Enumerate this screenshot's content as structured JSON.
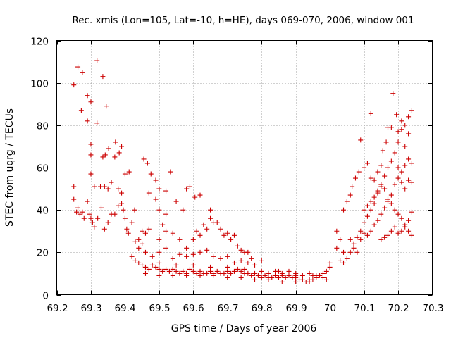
{
  "chart_data": {
    "type": "scatter",
    "title": "Rec. xmis (Lon=105, Lat=-10, h=HE), days 069-070, 2006, window 001",
    "xlabel": "GPS time / Days of year 2006",
    "ylabel": "STEC from uqrg / TECUs",
    "xlim": [
      69.2,
      70.3
    ],
    "ylim": [
      0,
      120
    ],
    "xticks": [
      "69.2",
      "69.3",
      "69.4",
      "69.5",
      "69.6",
      "69.7",
      "69.8",
      "69.9",
      "70",
      "70.1",
      "70.2",
      "70.3"
    ],
    "yticks": [
      "0",
      "20",
      "40",
      "60",
      "80",
      "100",
      "120"
    ],
    "grid": true,
    "legend": "none",
    "marker": "+",
    "marker_color": "#cc0000",
    "points": [
      [
        69.25,
        99
      ],
      [
        69.262,
        107.5
      ],
      [
        69.275,
        105
      ],
      [
        69.29,
        94
      ],
      [
        69.3,
        91
      ],
      [
        69.318,
        110.5
      ],
      [
        69.335,
        103
      ],
      [
        69.345,
        89
      ],
      [
        69.25,
        51
      ],
      [
        69.272,
        87
      ],
      [
        69.29,
        82
      ],
      [
        69.3,
        71
      ],
      [
        69.3,
        66
      ],
      [
        69.318,
        81
      ],
      [
        69.335,
        65
      ],
      [
        69.342,
        66
      ],
      [
        69.352,
        69
      ],
      [
        69.372,
        72
      ],
      [
        69.383,
        67
      ],
      [
        69.39,
        70
      ],
      [
        69.4,
        57
      ],
      [
        69.412,
        58
      ],
      [
        69.3,
        57
      ],
      [
        69.31,
        51
      ],
      [
        69.328,
        51
      ],
      [
        69.34,
        51
      ],
      [
        69.35,
        50
      ],
      [
        69.36,
        53
      ],
      [
        69.37,
        65
      ],
      [
        69.38,
        50
      ],
      [
        69.39,
        48
      ],
      [
        69.25,
        45
      ],
      [
        69.258,
        39
      ],
      [
        69.262,
        41
      ],
      [
        69.268,
        38
      ],
      [
        69.275,
        39
      ],
      [
        69.28,
        36
      ],
      [
        69.29,
        44
      ],
      [
        69.295,
        38
      ],
      [
        69.3,
        36
      ],
      [
        69.305,
        34
      ],
      [
        69.31,
        32
      ],
      [
        69.32,
        36
      ],
      [
        69.33,
        41
      ],
      [
        69.34,
        31
      ],
      [
        69.35,
        34
      ],
      [
        69.36,
        38
      ],
      [
        69.37,
        38
      ],
      [
        69.38,
        42
      ],
      [
        69.39,
        43
      ],
      [
        69.395,
        40
      ],
      [
        69.4,
        36
      ],
      [
        69.405,
        31
      ],
      [
        69.41,
        29
      ],
      [
        69.42,
        34
      ],
      [
        69.428,
        40
      ],
      [
        69.43,
        25
      ],
      [
        69.44,
        26
      ],
      [
        69.45,
        24
      ],
      [
        69.45,
        30
      ],
      [
        69.46,
        29
      ],
      [
        69.47,
        31
      ],
      [
        69.455,
        64
      ],
      [
        69.466,
        62
      ],
      [
        69.476,
        57
      ],
      [
        69.49,
        54
      ],
      [
        69.5,
        50
      ],
      [
        69.52,
        49
      ],
      [
        69.533,
        58
      ],
      [
        69.55,
        44
      ],
      [
        69.57,
        40
      ],
      [
        69.58,
        50
      ],
      [
        69.59,
        51
      ],
      [
        69.605,
        46
      ],
      [
        69.62,
        47
      ],
      [
        69.65,
        40
      ],
      [
        69.47,
        48
      ],
      [
        69.49,
        45
      ],
      [
        69.5,
        40
      ],
      [
        69.51,
        33
      ],
      [
        69.52,
        38
      ],
      [
        69.5,
        26
      ],
      [
        69.52,
        30
      ],
      [
        69.54,
        29
      ],
      [
        69.56,
        26
      ],
      [
        69.58,
        22
      ],
      [
        69.6,
        26
      ],
      [
        69.61,
        30
      ],
      [
        69.62,
        28
      ],
      [
        69.63,
        33
      ],
      [
        69.64,
        31
      ],
      [
        69.65,
        36
      ],
      [
        69.66,
        34
      ],
      [
        69.67,
        34
      ],
      [
        69.68,
        31
      ],
      [
        69.69,
        28
      ],
      [
        69.7,
        29
      ],
      [
        69.71,
        26
      ],
      [
        69.72,
        28
      ],
      [
        69.73,
        23
      ],
      [
        69.74,
        21
      ],
      [
        69.75,
        20
      ],
      [
        69.76,
        20
      ],
      [
        69.77,
        17
      ],
      [
        69.44,
        22
      ],
      [
        69.46,
        20
      ],
      [
        69.48,
        18
      ],
      [
        69.5,
        20
      ],
      [
        69.52,
        22
      ],
      [
        69.54,
        17
      ],
      [
        69.56,
        19
      ],
      [
        69.58,
        18
      ],
      [
        69.6,
        19
      ],
      [
        69.62,
        20
      ],
      [
        69.64,
        21
      ],
      [
        69.66,
        18
      ],
      [
        69.68,
        17
      ],
      [
        69.7,
        18
      ],
      [
        69.72,
        15
      ],
      [
        69.74,
        16
      ],
      [
        69.76,
        15
      ],
      [
        69.78,
        14
      ],
      [
        69.8,
        16
      ],
      [
        69.42,
        18
      ],
      [
        69.43,
        16
      ],
      [
        69.44,
        15
      ],
      [
        69.45,
        14
      ],
      [
        69.46,
        13
      ],
      [
        69.47,
        12
      ],
      [
        69.48,
        14
      ],
      [
        69.49,
        13
      ],
      [
        69.5,
        12
      ],
      [
        69.51,
        11
      ],
      [
        69.52,
        12
      ],
      [
        69.53,
        11
      ],
      [
        69.54,
        12
      ],
      [
        69.55,
        11
      ],
      [
        69.56,
        10
      ],
      [
        69.57,
        11
      ],
      [
        69.58,
        10
      ],
      [
        69.59,
        12
      ],
      [
        69.6,
        11
      ],
      [
        69.61,
        10
      ],
      [
        69.62,
        11
      ],
      [
        69.63,
        10
      ],
      [
        69.64,
        10
      ],
      [
        69.65,
        11
      ],
      [
        69.66,
        10
      ],
      [
        69.67,
        11
      ],
      [
        69.68,
        10
      ],
      [
        69.69,
        10
      ],
      [
        69.7,
        11
      ],
      [
        69.71,
        10
      ],
      [
        69.72,
        11
      ],
      [
        69.73,
        12
      ],
      [
        69.74,
        11
      ],
      [
        69.75,
        10
      ],
      [
        69.76,
        10
      ],
      [
        69.77,
        9
      ],
      [
        69.78,
        10
      ],
      [
        69.79,
        9
      ],
      [
        69.8,
        8
      ],
      [
        69.81,
        9
      ],
      [
        69.82,
        8
      ],
      [
        69.83,
        8
      ],
      [
        69.84,
        9
      ],
      [
        69.85,
        8
      ],
      [
        69.86,
        9
      ],
      [
        69.87,
        8
      ],
      [
        69.88,
        9
      ],
      [
        69.89,
        8
      ],
      [
        69.9,
        8
      ],
      [
        69.91,
        7
      ],
      [
        69.92,
        7
      ],
      [
        69.93,
        6
      ],
      [
        69.94,
        7
      ],
      [
        69.95,
        7
      ],
      [
        69.96,
        8
      ],
      [
        69.97,
        9
      ],
      [
        69.98,
        10
      ],
      [
        69.99,
        11
      ],
      [
        70.0,
        13
      ],
      [
        69.5,
        15
      ],
      [
        69.55,
        14
      ],
      [
        69.6,
        14
      ],
      [
        69.65,
        13
      ],
      [
        69.7,
        13
      ],
      [
        69.75,
        12
      ],
      [
        69.8,
        11
      ],
      [
        69.85,
        11
      ],
      [
        69.9,
        10
      ],
      [
        69.95,
        9
      ],
      [
        69.82,
        10
      ],
      [
        69.84,
        11
      ],
      [
        69.86,
        10
      ],
      [
        69.88,
        11
      ],
      [
        69.9,
        9
      ],
      [
        69.92,
        9
      ],
      [
        69.94,
        10
      ],
      [
        69.96,
        9
      ],
      [
        69.98,
        8
      ],
      [
        70.0,
        15
      ],
      [
        69.46,
        10
      ],
      [
        69.5,
        9
      ],
      [
        69.54,
        9
      ],
      [
        69.58,
        9
      ],
      [
        69.62,
        9
      ],
      [
        69.66,
        9
      ],
      [
        69.7,
        8
      ],
      [
        69.74,
        8
      ],
      [
        69.78,
        7
      ],
      [
        69.82,
        7
      ],
      [
        69.86,
        6
      ],
      [
        69.9,
        6
      ],
      [
        69.94,
        6
      ],
      [
        69.99,
        7
      ],
      [
        70.02,
        30
      ],
      [
        70.03,
        26
      ],
      [
        70.04,
        20
      ],
      [
        70.02,
        22
      ],
      [
        70.03,
        16
      ],
      [
        70.04,
        15
      ],
      [
        70.05,
        17
      ],
      [
        70.06,
        20
      ],
      [
        70.07,
        24
      ],
      [
        70.08,
        27
      ],
      [
        70.09,
        30
      ],
      [
        70.1,
        34
      ],
      [
        70.11,
        37
      ],
      [
        70.12,
        40
      ],
      [
        70.13,
        43
      ],
      [
        70.14,
        48
      ],
      [
        70.15,
        51
      ],
      [
        70.16,
        56
      ],
      [
        70.17,
        60
      ],
      [
        70.18,
        63
      ],
      [
        70.19,
        67
      ],
      [
        70.2,
        72
      ],
      [
        70.21,
        78
      ],
      [
        70.22,
        80
      ],
      [
        70.23,
        84
      ],
      [
        70.04,
        40
      ],
      [
        70.05,
        44
      ],
      [
        70.06,
        47
      ],
      [
        70.065,
        51
      ],
      [
        70.075,
        55
      ],
      [
        70.085,
        58
      ],
      [
        70.09,
        73
      ],
      [
        70.1,
        60
      ],
      [
        70.11,
        62
      ],
      [
        70.12,
        55
      ],
      [
        70.13,
        54
      ],
      [
        70.14,
        58
      ],
      [
        70.15,
        61
      ],
      [
        70.155,
        68
      ],
      [
        70.165,
        72
      ],
      [
        70.17,
        79
      ],
      [
        70.18,
        79
      ],
      [
        70.185,
        95
      ],
      [
        70.195,
        85
      ],
      [
        70.2,
        77
      ],
      [
        70.21,
        82
      ],
      [
        70.22,
        70
      ],
      [
        70.23,
        76
      ],
      [
        70.24,
        87
      ],
      [
        70.12,
        85.5
      ],
      [
        70.06,
        26
      ],
      [
        70.07,
        22
      ],
      [
        70.08,
        20
      ],
      [
        70.09,
        26
      ],
      [
        70.1,
        29
      ],
      [
        70.11,
        28
      ],
      [
        70.12,
        30
      ],
      [
        70.13,
        33
      ],
      [
        70.14,
        35
      ],
      [
        70.15,
        38
      ],
      [
        70.16,
        41
      ],
      [
        70.17,
        44
      ],
      [
        70.18,
        47
      ],
      [
        70.19,
        52
      ],
      [
        70.2,
        55
      ],
      [
        70.21,
        58
      ],
      [
        70.22,
        61
      ],
      [
        70.23,
        64
      ],
      [
        70.24,
        62
      ],
      [
        70.1,
        40
      ],
      [
        70.11,
        42
      ],
      [
        70.12,
        44
      ],
      [
        70.13,
        46
      ],
      [
        70.14,
        49
      ],
      [
        70.15,
        52
      ],
      [
        70.16,
        50
      ],
      [
        70.17,
        45
      ],
      [
        70.18,
        43
      ],
      [
        70.19,
        40
      ],
      [
        70.2,
        38
      ],
      [
        70.21,
        36
      ],
      [
        70.22,
        33
      ],
      [
        70.23,
        30
      ],
      [
        70.24,
        28
      ],
      [
        70.15,
        26
      ],
      [
        70.16,
        27
      ],
      [
        70.17,
        28
      ],
      [
        70.18,
        30
      ],
      [
        70.19,
        32
      ],
      [
        70.2,
        29
      ],
      [
        70.21,
        30
      ],
      [
        70.22,
        32
      ],
      [
        70.23,
        35
      ],
      [
        70.24,
        39
      ],
      [
        70.2,
        60
      ],
      [
        70.21,
        53
      ],
      [
        70.22,
        50
      ],
      [
        70.23,
        54
      ],
      [
        70.24,
        53
      ]
    ]
  }
}
